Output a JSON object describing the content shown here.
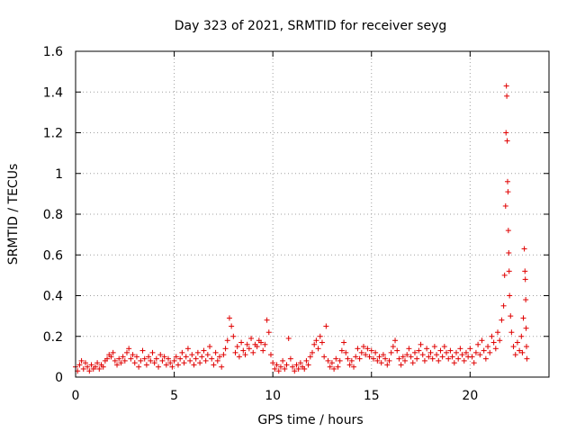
{
  "chart_data": {
    "type": "scatter",
    "title": "Day 323 of 2021, SRMTID for receiver seyg",
    "xlabel": "GPS time / hours",
    "ylabel": "SRMTID / TECUs",
    "xlim": [
      0,
      24
    ],
    "ylim": [
      0,
      1.6
    ],
    "xticks": [
      0,
      5,
      10,
      15,
      20
    ],
    "xtick_labels": [
      "0",
      "5",
      "10",
      "15",
      "20"
    ],
    "yticks": [
      0,
      0.2,
      0.4,
      0.6,
      0.8,
      1.0,
      1.2,
      1.4,
      1.6
    ],
    "ytick_labels": [
      "0",
      "0.2",
      "0.4",
      "0.6",
      "0.8",
      "1",
      "1.2",
      "1.4",
      "1.6"
    ],
    "grid": true,
    "marker": "+",
    "color": "#e00000",
    "series": [
      {
        "name": "seyg",
        "points": [
          [
            0.0,
            0.05
          ],
          [
            0.1,
            0.03
          ],
          [
            0.2,
            0.06
          ],
          [
            0.3,
            0.08
          ],
          [
            0.4,
            0.04
          ],
          [
            0.5,
            0.07
          ],
          [
            0.6,
            0.05
          ],
          [
            0.7,
            0.03
          ],
          [
            0.8,
            0.06
          ],
          [
            0.9,
            0.04
          ],
          [
            1.0,
            0.05
          ],
          [
            1.1,
            0.07
          ],
          [
            1.2,
            0.04
          ],
          [
            1.3,
            0.06
          ],
          [
            1.4,
            0.05
          ],
          [
            1.5,
            0.08
          ],
          [
            1.6,
            0.09
          ],
          [
            1.7,
            0.11
          ],
          [
            1.8,
            0.1
          ],
          [
            1.9,
            0.12
          ],
          [
            2.0,
            0.08
          ],
          [
            2.1,
            0.06
          ],
          [
            2.2,
            0.09
          ],
          [
            2.3,
            0.07
          ],
          [
            2.4,
            0.1
          ],
          [
            2.5,
            0.08
          ],
          [
            2.6,
            0.12
          ],
          [
            2.7,
            0.14
          ],
          [
            2.8,
            0.09
          ],
          [
            2.9,
            0.11
          ],
          [
            3.0,
            0.07
          ],
          [
            3.1,
            0.1
          ],
          [
            3.2,
            0.05
          ],
          [
            3.3,
            0.08
          ],
          [
            3.4,
            0.13
          ],
          [
            3.5,
            0.09
          ],
          [
            3.6,
            0.06
          ],
          [
            3.7,
            0.1
          ],
          [
            3.8,
            0.08
          ],
          [
            3.9,
            0.12
          ],
          [
            4.0,
            0.07
          ],
          [
            4.1,
            0.09
          ],
          [
            4.2,
            0.05
          ],
          [
            4.3,
            0.11
          ],
          [
            4.4,
            0.08
          ],
          [
            4.5,
            0.1
          ],
          [
            4.6,
            0.06
          ],
          [
            4.7,
            0.09
          ],
          [
            4.8,
            0.07
          ],
          [
            4.9,
            0.05
          ],
          [
            5.0,
            0.08
          ],
          [
            5.1,
            0.1
          ],
          [
            5.2,
            0.06
          ],
          [
            5.3,
            0.09
          ],
          [
            5.4,
            0.12
          ],
          [
            5.5,
            0.07
          ],
          [
            5.6,
            0.1
          ],
          [
            5.7,
            0.14
          ],
          [
            5.8,
            0.08
          ],
          [
            5.9,
            0.11
          ],
          [
            6.0,
            0.06
          ],
          [
            6.1,
            0.09
          ],
          [
            6.2,
            0.12
          ],
          [
            6.3,
            0.07
          ],
          [
            6.4,
            0.1
          ],
          [
            6.5,
            0.13
          ],
          [
            6.6,
            0.08
          ],
          [
            6.7,
            0.11
          ],
          [
            6.8,
            0.15
          ],
          [
            6.9,
            0.09
          ],
          [
            7.0,
            0.06
          ],
          [
            7.1,
            0.12
          ],
          [
            7.2,
            0.08
          ],
          [
            7.3,
            0.1
          ],
          [
            7.4,
            0.05
          ],
          [
            7.5,
            0.11
          ],
          [
            7.6,
            0.14
          ],
          [
            7.7,
            0.18
          ],
          [
            7.8,
            0.29
          ],
          [
            7.9,
            0.25
          ],
          [
            8.0,
            0.2
          ],
          [
            8.1,
            0.12
          ],
          [
            8.2,
            0.15
          ],
          [
            8.3,
            0.1
          ],
          [
            8.4,
            0.17
          ],
          [
            8.5,
            0.13
          ],
          [
            8.6,
            0.11
          ],
          [
            8.7,
            0.16
          ],
          [
            8.8,
            0.14
          ],
          [
            8.9,
            0.19
          ],
          [
            9.0,
            0.12
          ],
          [
            9.1,
            0.16
          ],
          [
            9.2,
            0.15
          ],
          [
            9.3,
            0.18
          ],
          [
            9.4,
            0.17
          ],
          [
            9.5,
            0.13
          ],
          [
            9.6,
            0.16
          ],
          [
            9.7,
            0.28
          ],
          [
            9.8,
            0.22
          ],
          [
            9.9,
            0.11
          ],
          [
            10.0,
            0.07
          ],
          [
            10.1,
            0.04
          ],
          [
            10.2,
            0.06
          ],
          [
            10.3,
            0.03
          ],
          [
            10.4,
            0.05
          ],
          [
            10.5,
            0.08
          ],
          [
            10.6,
            0.04
          ],
          [
            10.7,
            0.06
          ],
          [
            10.8,
            0.19
          ],
          [
            10.9,
            0.09
          ],
          [
            11.0,
            0.05
          ],
          [
            11.1,
            0.03
          ],
          [
            11.2,
            0.06
          ],
          [
            11.3,
            0.04
          ],
          [
            11.4,
            0.07
          ],
          [
            11.5,
            0.05
          ],
          [
            11.6,
            0.04
          ],
          [
            11.7,
            0.08
          ],
          [
            11.8,
            0.06
          ],
          [
            11.9,
            0.1
          ],
          [
            12.0,
            0.12
          ],
          [
            12.1,
            0.16
          ],
          [
            12.2,
            0.18
          ],
          [
            12.3,
            0.14
          ],
          [
            12.4,
            0.2
          ],
          [
            12.5,
            0.17
          ],
          [
            12.6,
            0.1
          ],
          [
            12.7,
            0.25
          ],
          [
            12.8,
            0.08
          ],
          [
            12.9,
            0.05
          ],
          [
            13.0,
            0.07
          ],
          [
            13.1,
            0.04
          ],
          [
            13.2,
            0.09
          ],
          [
            13.3,
            0.05
          ],
          [
            13.4,
            0.08
          ],
          [
            13.5,
            0.13
          ],
          [
            13.6,
            0.17
          ],
          [
            13.7,
            0.12
          ],
          [
            13.8,
            0.09
          ],
          [
            13.9,
            0.06
          ],
          [
            14.0,
            0.08
          ],
          [
            14.1,
            0.05
          ],
          [
            14.2,
            0.1
          ],
          [
            14.3,
            0.14
          ],
          [
            14.4,
            0.09
          ],
          [
            14.5,
            0.12
          ],
          [
            14.6,
            0.15
          ],
          [
            14.7,
            0.11
          ],
          [
            14.8,
            0.14
          ],
          [
            14.9,
            0.1
          ],
          [
            15.0,
            0.13
          ],
          [
            15.1,
            0.09
          ],
          [
            15.2,
            0.12
          ],
          [
            15.3,
            0.08
          ],
          [
            15.4,
            0.1
          ],
          [
            15.5,
            0.07
          ],
          [
            15.6,
            0.11
          ],
          [
            15.7,
            0.09
          ],
          [
            15.8,
            0.06
          ],
          [
            15.9,
            0.08
          ],
          [
            16.0,
            0.12
          ],
          [
            16.1,
            0.15
          ],
          [
            16.2,
            0.18
          ],
          [
            16.3,
            0.13
          ],
          [
            16.4,
            0.09
          ],
          [
            16.5,
            0.06
          ],
          [
            16.6,
            0.1
          ],
          [
            16.7,
            0.08
          ],
          [
            16.8,
            0.11
          ],
          [
            16.9,
            0.14
          ],
          [
            17.0,
            0.1
          ],
          [
            17.1,
            0.07
          ],
          [
            17.2,
            0.12
          ],
          [
            17.3,
            0.09
          ],
          [
            17.4,
            0.13
          ],
          [
            17.5,
            0.16
          ],
          [
            17.6,
            0.11
          ],
          [
            17.7,
            0.08
          ],
          [
            17.8,
            0.14
          ],
          [
            17.9,
            0.1
          ],
          [
            18.0,
            0.12
          ],
          [
            18.1,
            0.09
          ],
          [
            18.2,
            0.15
          ],
          [
            18.3,
            0.11
          ],
          [
            18.4,
            0.08
          ],
          [
            18.5,
            0.13
          ],
          [
            18.6,
            0.1
          ],
          [
            18.7,
            0.15
          ],
          [
            18.8,
            0.12
          ],
          [
            18.9,
            0.09
          ],
          [
            19.0,
            0.13
          ],
          [
            19.1,
            0.1
          ],
          [
            19.2,
            0.07
          ],
          [
            19.3,
            0.12
          ],
          [
            19.4,
            0.09
          ],
          [
            19.5,
            0.14
          ],
          [
            19.6,
            0.11
          ],
          [
            19.7,
            0.08
          ],
          [
            19.8,
            0.12
          ],
          [
            19.9,
            0.1
          ],
          [
            20.0,
            0.14
          ],
          [
            20.1,
            0.1
          ],
          [
            20.2,
            0.07
          ],
          [
            20.3,
            0.12
          ],
          [
            20.4,
            0.16
          ],
          [
            20.5,
            0.11
          ],
          [
            20.6,
            0.18
          ],
          [
            20.7,
            0.13
          ],
          [
            20.8,
            0.09
          ],
          [
            20.9,
            0.15
          ],
          [
            21.0,
            0.12
          ],
          [
            21.1,
            0.2
          ],
          [
            21.2,
            0.17
          ],
          [
            21.3,
            0.14
          ],
          [
            21.4,
            0.22
          ],
          [
            21.5,
            0.18
          ],
          [
            21.6,
            0.28
          ],
          [
            21.7,
            0.35
          ],
          [
            21.75,
            0.5
          ],
          [
            21.8,
            0.84
          ],
          [
            21.82,
            1.2
          ],
          [
            21.84,
            1.43
          ],
          [
            21.86,
            1.38
          ],
          [
            21.88,
            1.16
          ],
          [
            21.9,
            0.96
          ],
          [
            21.92,
            0.91
          ],
          [
            21.94,
            0.72
          ],
          [
            21.96,
            0.61
          ],
          [
            21.98,
            0.52
          ],
          [
            22.0,
            0.4
          ],
          [
            22.05,
            0.3
          ],
          [
            22.1,
            0.22
          ],
          [
            22.2,
            0.15
          ],
          [
            22.3,
            0.11
          ],
          [
            22.4,
            0.17
          ],
          [
            22.5,
            0.13
          ],
          [
            22.6,
            0.2
          ],
          [
            22.65,
            0.12
          ],
          [
            22.7,
            0.29
          ],
          [
            22.75,
            0.63
          ],
          [
            22.78,
            0.52
          ],
          [
            22.8,
            0.48
          ],
          [
            22.82,
            0.38
          ],
          [
            22.84,
            0.24
          ],
          [
            22.86,
            0.15
          ],
          [
            22.88,
            0.09
          ]
        ]
      }
    ]
  }
}
